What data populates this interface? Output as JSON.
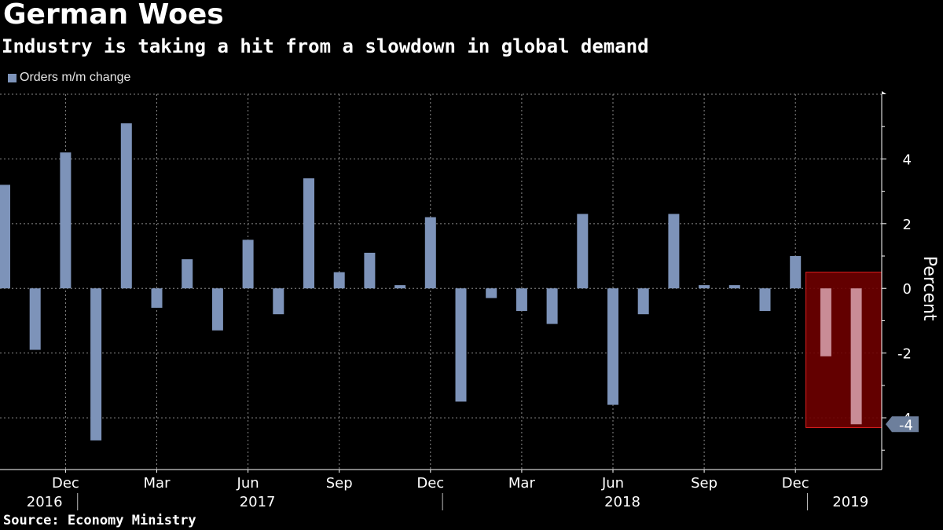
{
  "title": "German Woes",
  "subtitle": "Industry is taking a hit from a slowdown in global demand",
  "source": "Source: Economy Ministry",
  "colors": {
    "background": "#000000",
    "bar": "#7d93b9",
    "highlight_fill": "#6e0000",
    "highlight_stroke": "#e01e1e",
    "highlight_bar": "#c98c96",
    "grid": "#8a8a8a"
  },
  "chart_data": {
    "type": "bar",
    "title": "German Woes",
    "subtitle": "Industry is taking a hit from a slowdown in global demand",
    "ylabel": "Percent",
    "ylim": [
      -5.6,
      6.0
    ],
    "yticks": [
      4,
      2,
      0,
      -2,
      -4
    ],
    "grid": true,
    "legend": "top-left",
    "series": [
      {
        "name": "Orders m/m change",
        "values": [
          3.2,
          -1.9,
          4.2,
          -4.7,
          5.1,
          -0.6,
          0.9,
          -1.3,
          1.5,
          -0.8,
          3.4,
          0.5,
          1.1,
          0.1,
          2.2,
          -3.5,
          -0.3,
          -0.7,
          -1.1,
          2.3,
          -3.6,
          -0.8,
          2.3,
          0.1,
          0.1,
          -0.7,
          1.0,
          -2.1,
          -4.2
        ]
      }
    ],
    "categories": [
      "Oct 2016",
      "Nov 2016",
      "Dec 2016",
      "Jan 2017",
      "Feb 2017",
      "Mar 2017",
      "Apr 2017",
      "May 2017",
      "Jun 2017",
      "Jul 2017",
      "Aug 2017",
      "Sep 2017",
      "Oct 2017",
      "Nov 2017",
      "Dec 2017",
      "Jan 2018",
      "Feb 2018",
      "Mar 2018",
      "Apr 2018",
      "May 2018",
      "Jun 2018",
      "Jul 2018",
      "Aug 2018",
      "Sep 2018",
      "Oct 2018",
      "Nov 2018",
      "Dec 2018",
      "Jan 2019",
      "Feb 2019"
    ],
    "highlight_range": [
      "Jan 2019",
      "Feb 2019"
    ],
    "last_value_label": "-4",
    "x_month_ticks": [
      {
        "label": "Dec",
        "index": 2
      },
      {
        "label": "Mar",
        "index": 5
      },
      {
        "label": "Jun",
        "index": 8
      },
      {
        "label": "Sep",
        "index": 11
      },
      {
        "label": "Dec",
        "index": 14
      },
      {
        "label": "Mar",
        "index": 17
      },
      {
        "label": "Jun",
        "index": 20
      },
      {
        "label": "Sep",
        "index": 23
      },
      {
        "label": "Dec",
        "index": 26
      }
    ],
    "x_year_labels": [
      {
        "label": "2016",
        "index": 1
      },
      {
        "label": "2017",
        "index": 8
      },
      {
        "label": "2018",
        "index": 20
      },
      {
        "label": "2019",
        "index": 27.5
      }
    ],
    "x_year_separators": [
      2.5,
      14.5,
      26.5
    ]
  }
}
